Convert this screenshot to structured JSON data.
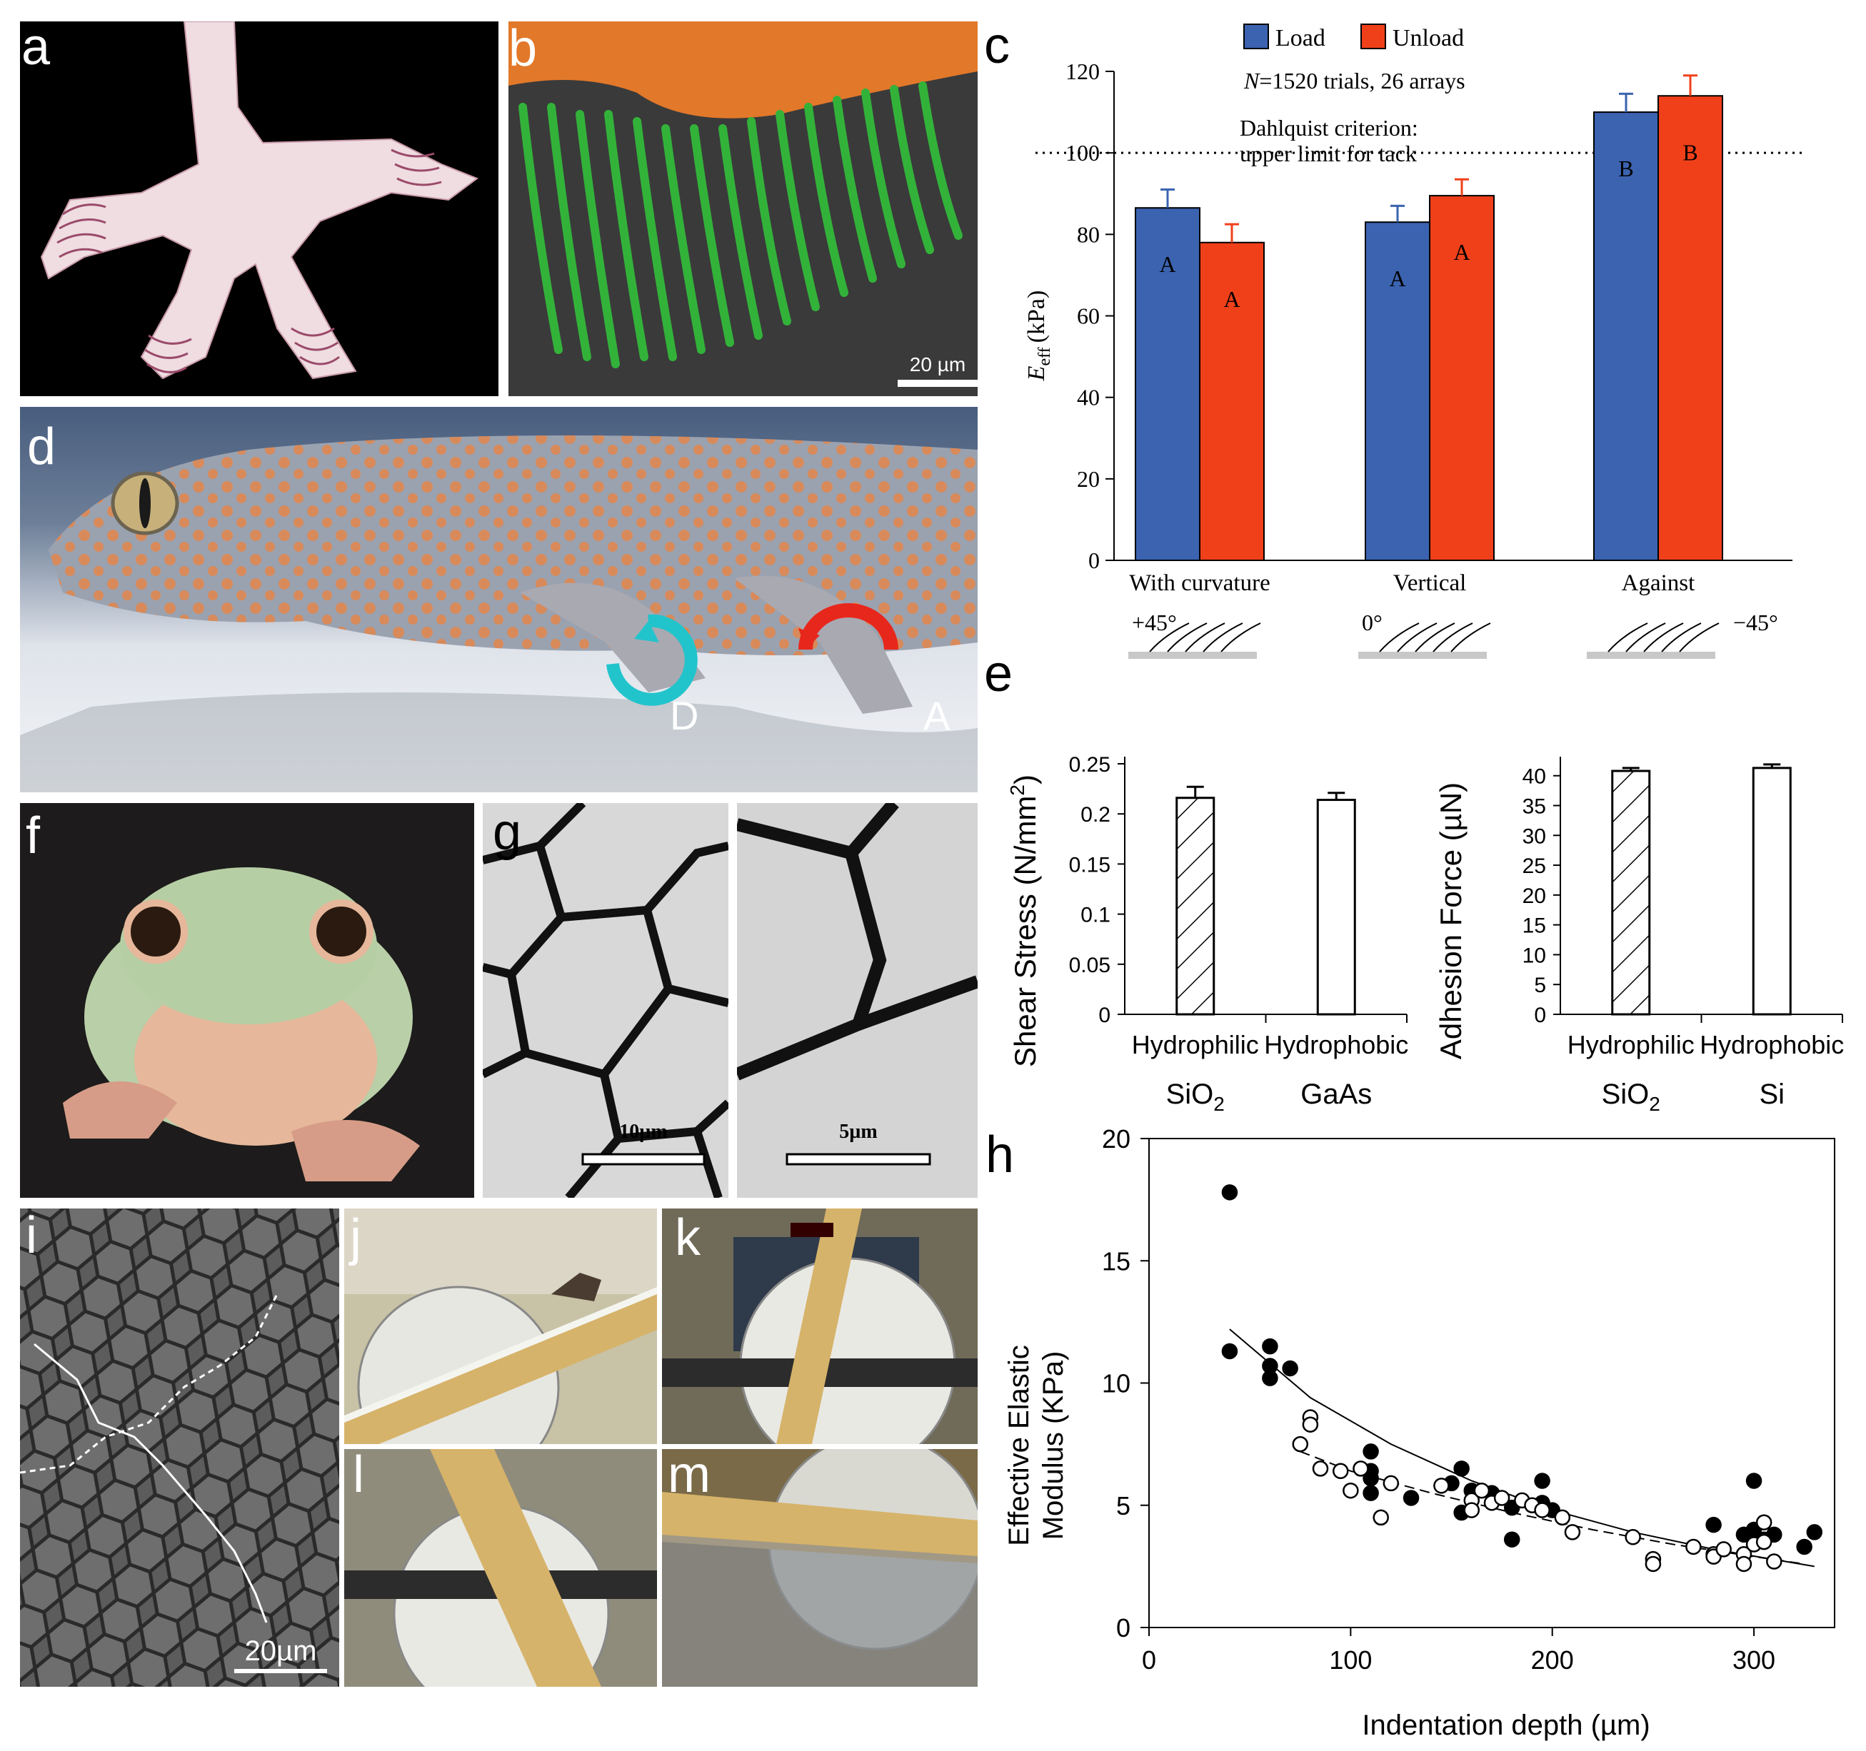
{
  "figure": {
    "panel_labels": {
      "a": "a",
      "b": "b",
      "c": "c",
      "d": "d",
      "e": "e",
      "f": "f",
      "g": "g",
      "h": "h",
      "i": "i",
      "j": "j",
      "k": "k",
      "l": "l",
      "m": "m"
    },
    "scale_bars": {
      "b": "20 µm",
      "g1": "10µm",
      "g2": "5µm",
      "i": "20µm"
    },
    "d_arrow_labels": {
      "left": "D",
      "right": "A"
    }
  },
  "chart_data": [
    {
      "id": "c",
      "type": "bar",
      "categories": [
        "With curvature",
        "Vertical",
        "Against"
      ],
      "series": [
        {
          "name": "Load",
          "color": "#3b63b0",
          "values": [
            86.5,
            83,
            110
          ],
          "errors": [
            4.5,
            4,
            4.5
          ],
          "letters": [
            "A",
            "A",
            "B"
          ]
        },
        {
          "name": "Unload",
          "color": "#f0401a",
          "values": [
            78,
            89.5,
            114
          ],
          "errors": [
            4.5,
            4,
            5
          ],
          "letters": [
            "A",
            "A",
            "B"
          ]
        }
      ],
      "ylabel_main": "E",
      "ylabel_sub": "eff",
      "ylabel_unit": "(kPa)",
      "ylim": [
        0,
        120
      ],
      "yticks": [
        0,
        20,
        40,
        60,
        80,
        100,
        120
      ],
      "reference_line": {
        "value": 100,
        "label_line1": "Dahlquist criterion:",
        "label_line2": "upper limit for tack"
      },
      "annotation_italic": "N",
      "annotation_rest": "=1520 trials, 26 arrays",
      "angles": [
        "+45°",
        "0°",
        "−45°"
      ],
      "legend_position": "top"
    },
    {
      "id": "e-left",
      "type": "bar",
      "categories": [
        "Hydrophilic",
        "Hydrophobic"
      ],
      "materials": [
        "SiO",
        "GaAs"
      ],
      "material_subscripts": [
        "2",
        ""
      ],
      "values": [
        0.216,
        0.214
      ],
      "errors": [
        0.011,
        0.007
      ],
      "hatched": [
        true,
        false
      ],
      "ylabel": "Shear Stress (N/mm",
      "ylabel_sup": "2",
      "ylabel_close": ")",
      "ylim": [
        0,
        0.25
      ],
      "yticks": [
        0,
        0.05,
        0.1,
        0.15,
        0.2,
        0.25
      ],
      "ytick_labels": [
        "0",
        "0.05",
        "0.1",
        "0.15",
        "0.2",
        "0.25"
      ]
    },
    {
      "id": "e-right",
      "type": "bar",
      "categories": [
        "Hydrophilic",
        "Hydrophobic"
      ],
      "materials": [
        "SiO",
        "Si"
      ],
      "material_subscripts": [
        "2",
        ""
      ],
      "values": [
        40.8,
        41.3
      ],
      "errors": [
        0.5,
        0.6
      ],
      "hatched": [
        true,
        false
      ],
      "ylabel": "Adhesion Force (µN)",
      "ylim": [
        0,
        42
      ],
      "yticks": [
        0,
        5,
        10,
        15,
        20,
        25,
        30,
        35,
        40
      ],
      "ytick_labels": [
        "0",
        "5",
        "10",
        "15",
        "20",
        "25",
        "30",
        "35",
        "40"
      ]
    },
    {
      "id": "h",
      "type": "scatter",
      "xlabel": "Indentation depth (µm)",
      "ylabel_line1": "Effective Elastic",
      "ylabel_line2": "Modulus (KPa)",
      "xlim": [
        0,
        340
      ],
      "ylim": [
        0,
        20
      ],
      "xticks": [
        0,
        100,
        200,
        300
      ],
      "yticks": [
        0,
        5,
        10,
        15,
        20
      ],
      "series": [
        {
          "name": "filled",
          "fill": "#000000",
          "points": [
            [
              40,
              17.8
            ],
            [
              40,
              11.3
            ],
            [
              60,
              11.5
            ],
            [
              60,
              10.7
            ],
            [
              60,
              10.2
            ],
            [
              70,
              10.6
            ],
            [
              110,
              7.2
            ],
            [
              110,
              6.4
            ],
            [
              110,
              6.1
            ],
            [
              110,
              5.5
            ],
            [
              130,
              5.3
            ],
            [
              150,
              5.9
            ],
            [
              155,
              6.5
            ],
            [
              155,
              4.7
            ],
            [
              160,
              5.6
            ],
            [
              170,
              5.5
            ],
            [
              180,
              4.9
            ],
            [
              180,
              3.6
            ],
            [
              195,
              6.0
            ],
            [
              195,
              5.1
            ],
            [
              200,
              4.8
            ],
            [
              280,
              4.2
            ],
            [
              295,
              3.8
            ],
            [
              300,
              6.0
            ],
            [
              300,
              4.0
            ],
            [
              305,
              3.6
            ],
            [
              310,
              3.8
            ],
            [
              325,
              3.3
            ],
            [
              330,
              3.9
            ]
          ],
          "fit": [
            [
              40,
              12.2
            ],
            [
              80,
              9.4
            ],
            [
              120,
              7.5
            ],
            [
              160,
              6.0
            ],
            [
              200,
              4.8
            ],
            [
              240,
              3.9
            ],
            [
              280,
              3.2
            ],
            [
              330,
              2.5
            ]
          ],
          "fit_style": "solid"
        },
        {
          "name": "open",
          "fill": "#ffffff",
          "points": [
            [
              75,
              7.5
            ],
            [
              80,
              8.6
            ],
            [
              80,
              8.3
            ],
            [
              85,
              6.5
            ],
            [
              95,
              6.4
            ],
            [
              100,
              5.6
            ],
            [
              105,
              6.5
            ],
            [
              115,
              4.5
            ],
            [
              120,
              5.9
            ],
            [
              145,
              5.8
            ],
            [
              160,
              5.2
            ],
            [
              160,
              4.8
            ],
            [
              165,
              5.6
            ],
            [
              170,
              5.1
            ],
            [
              175,
              5.3
            ],
            [
              185,
              5.2
            ],
            [
              190,
              5.0
            ],
            [
              195,
              4.8
            ],
            [
              205,
              4.5
            ],
            [
              210,
              3.9
            ],
            [
              240,
              3.7
            ],
            [
              250,
              2.8
            ],
            [
              250,
              2.6
            ],
            [
              270,
              3.3
            ],
            [
              280,
              3.0
            ],
            [
              280,
              2.9
            ],
            [
              285,
              3.2
            ],
            [
              295,
              3.0
            ],
            [
              295,
              2.6
            ],
            [
              300,
              3.4
            ],
            [
              305,
              4.3
            ],
            [
              305,
              3.5
            ],
            [
              310,
              2.7
            ]
          ],
          "fit": [
            [
              75,
              7.2
            ],
            [
              100,
              6.4
            ],
            [
              140,
              5.5
            ],
            [
              180,
              4.7
            ],
            [
              220,
              4.0
            ],
            [
              260,
              3.4
            ],
            [
              300,
              2.9
            ],
            [
              325,
              2.6
            ]
          ],
          "fit_style": "dashed"
        }
      ]
    }
  ]
}
